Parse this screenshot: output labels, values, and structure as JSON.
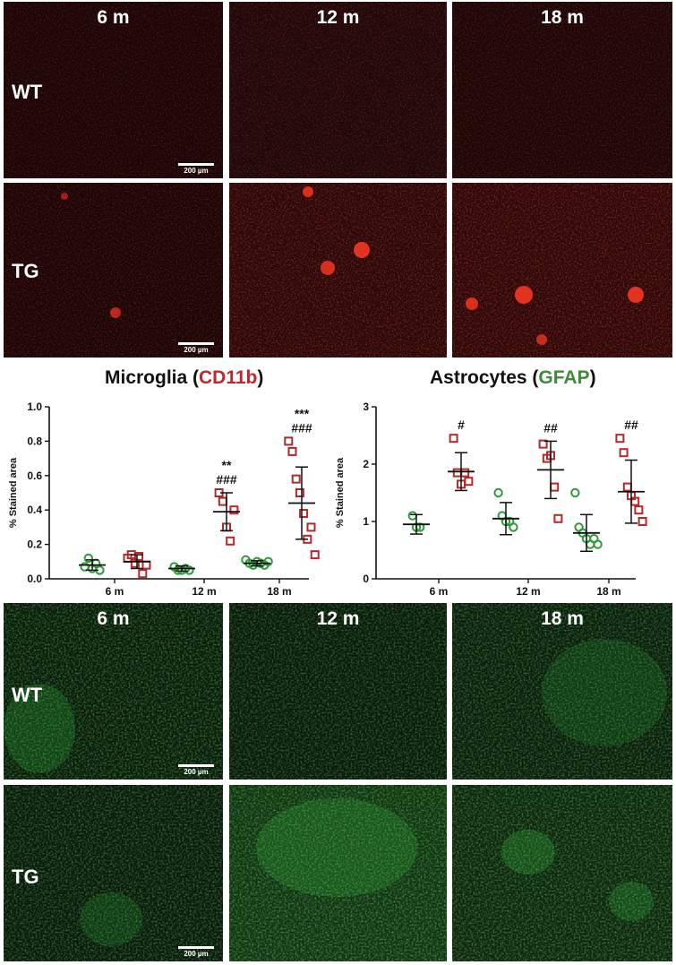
{
  "time_labels": [
    "6 m",
    "12 m",
    "18 m"
  ],
  "row_labels": [
    "WT",
    "TG"
  ],
  "scale_bar": "200 µm",
  "colors": {
    "wt": "#2e9a3a",
    "tg": "#b02a2a",
    "cd11b": "#c0272d",
    "gfap": "#3f8a3a"
  },
  "microglia_title": {
    "prefix": "Microglia (",
    "marker": "CD11b",
    "suffix": ")"
  },
  "astro_title": {
    "prefix": "Astrocytes (",
    "marker": "GFAP",
    "suffix": ")"
  },
  "chart_data": [
    {
      "type": "scatter",
      "title": "Microglia (CD11b)",
      "ylabel": "% Stained area",
      "categories": [
        "6 m",
        "12 m",
        "18 m"
      ],
      "ylim": [
        0,
        1.0
      ],
      "yticks": [
        0.0,
        0.2,
        0.4,
        0.6,
        0.8,
        1.0
      ],
      "ytick_labels": [
        "0.0",
        "0.2",
        "0.4",
        "0.6",
        "0.8",
        "1.0"
      ],
      "series": [
        {
          "group": "WT",
          "marker": "circle",
          "points": [
            [
              0.07,
              0.12,
              0.06,
              0.09,
              0.05
            ],
            [
              0.07,
              0.05,
              0.05,
              0.06,
              0.05
            ],
            [
              0.11,
              0.09,
              0.08,
              0.1,
              0.09,
              0.08,
              0.1
            ]
          ],
          "mean": [
            0.08,
            0.06,
            0.09
          ],
          "sd": [
            0.03,
            0.015,
            0.015
          ]
        },
        {
          "group": "TG",
          "marker": "square",
          "points": [
            [
              0.12,
              0.14,
              0.09,
              0.13,
              0.03,
              0.08
            ],
            [
              0.5,
              0.45,
              0.3,
              0.22,
              0.4
            ],
            [
              0.8,
              0.74,
              0.58,
              0.5,
              0.38,
              0.23,
              0.3,
              0.14
            ]
          ],
          "mean": [
            0.1,
            0.39,
            0.44
          ],
          "sd": [
            0.04,
            0.11,
            0.21
          ]
        }
      ],
      "annotations": [
        {
          "category": 1,
          "lines": [
            "**",
            "###"
          ]
        },
        {
          "category": 2,
          "lines": [
            "***",
            "###"
          ]
        }
      ]
    },
    {
      "type": "scatter",
      "title": "Astrocytes (GFAP)",
      "ylabel": "% Stained area",
      "categories": [
        "6 m",
        "12 m",
        "18 m"
      ],
      "ylim": [
        0,
        3
      ],
      "yticks": [
        0,
        1,
        2,
        3
      ],
      "ytick_labels": [
        "0",
        "1",
        "2",
        "3"
      ],
      "series": [
        {
          "group": "WT",
          "marker": "circle",
          "points": [
            [
              1.1,
              0.9,
              0.9
            ],
            [
              1.5,
              1.1,
              1.0,
              1.0,
              0.9
            ],
            [
              1.5,
              0.9,
              0.8,
              0.7,
              0.6,
              0.7,
              0.6
            ]
          ],
          "mean": [
            0.95,
            1.05,
            0.8
          ],
          "sd": [
            0.17,
            0.28,
            0.32
          ]
        },
        {
          "group": "TG",
          "marker": "square",
          "points": [
            [
              2.45,
              1.85,
              1.65,
              1.85,
              1.7
            ],
            [
              2.35,
              2.1,
              2.15,
              1.6,
              1.05
            ],
            [
              2.45,
              2.2,
              1.6,
              1.45,
              1.35,
              1.2,
              1.0
            ]
          ],
          "mean": [
            1.87,
            1.9,
            1.52
          ],
          "sd": [
            0.33,
            0.5,
            0.55
          ]
        }
      ],
      "annotations": [
        {
          "category": 0,
          "lines": [
            "#"
          ]
        },
        {
          "category": 1,
          "lines": [
            "##"
          ]
        },
        {
          "category": 2,
          "lines": [
            "##"
          ]
        }
      ]
    }
  ]
}
